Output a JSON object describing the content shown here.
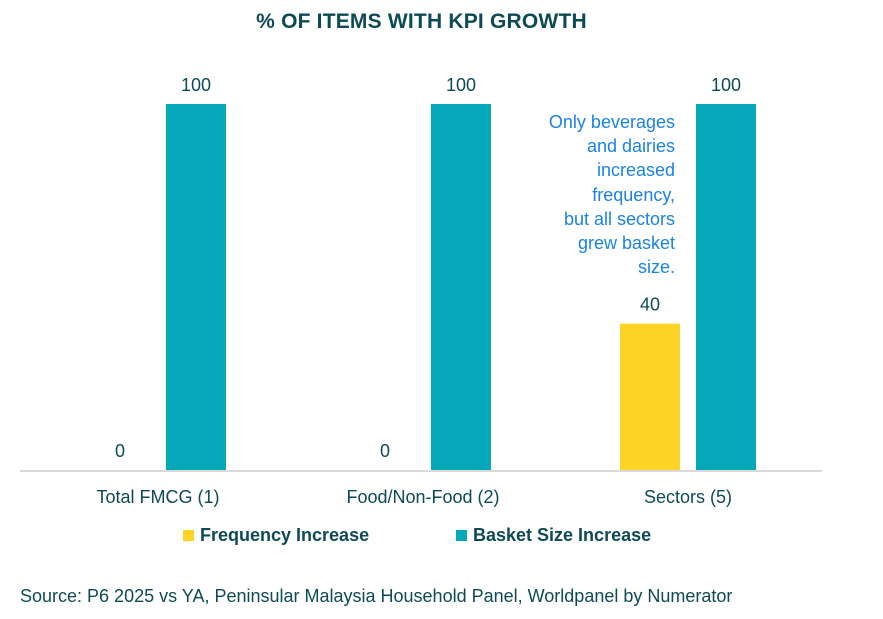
{
  "chart_data": {
    "type": "bar",
    "title": "% OF ITEMS WITH KPI GROWTH",
    "categories": [
      "Total FMCG (1)",
      "Food/Non-Food (2)",
      "Sectors (5)"
    ],
    "series": [
      {
        "name": "Frequency Increase",
        "color": "#fdd426",
        "values": [
          0,
          0,
          40
        ]
      },
      {
        "name": "Basket Size Increase",
        "color": "#05a8b8",
        "values": [
          100,
          100,
          100
        ]
      }
    ],
    "data_labels": true,
    "ylim": [
      0,
      100
    ],
    "xlabel": "",
    "ylabel": "",
    "grid": false,
    "legend_position": "bottom",
    "annotation": "Only beverages and dairies increased frequency, but all sectors grew basket size."
  },
  "legend": {
    "items": [
      {
        "label": "Frequency Increase",
        "color": "#fdd426"
      },
      {
        "label": "Basket Size Increase",
        "color": "#05a8b8"
      }
    ]
  },
  "annotation_lines": [
    "Only beverages",
    "and dairies",
    "increased",
    "frequency,",
    "but all sectors",
    "grew basket",
    "size."
  ],
  "source": "Source: P6 2025 vs YA, Peninsular Malaysia Household Panel, Worldpanel by Numerator",
  "colors": {
    "title": "#0d4a55",
    "annotation": "#1a82e6",
    "axis": "#d9d9d9"
  }
}
